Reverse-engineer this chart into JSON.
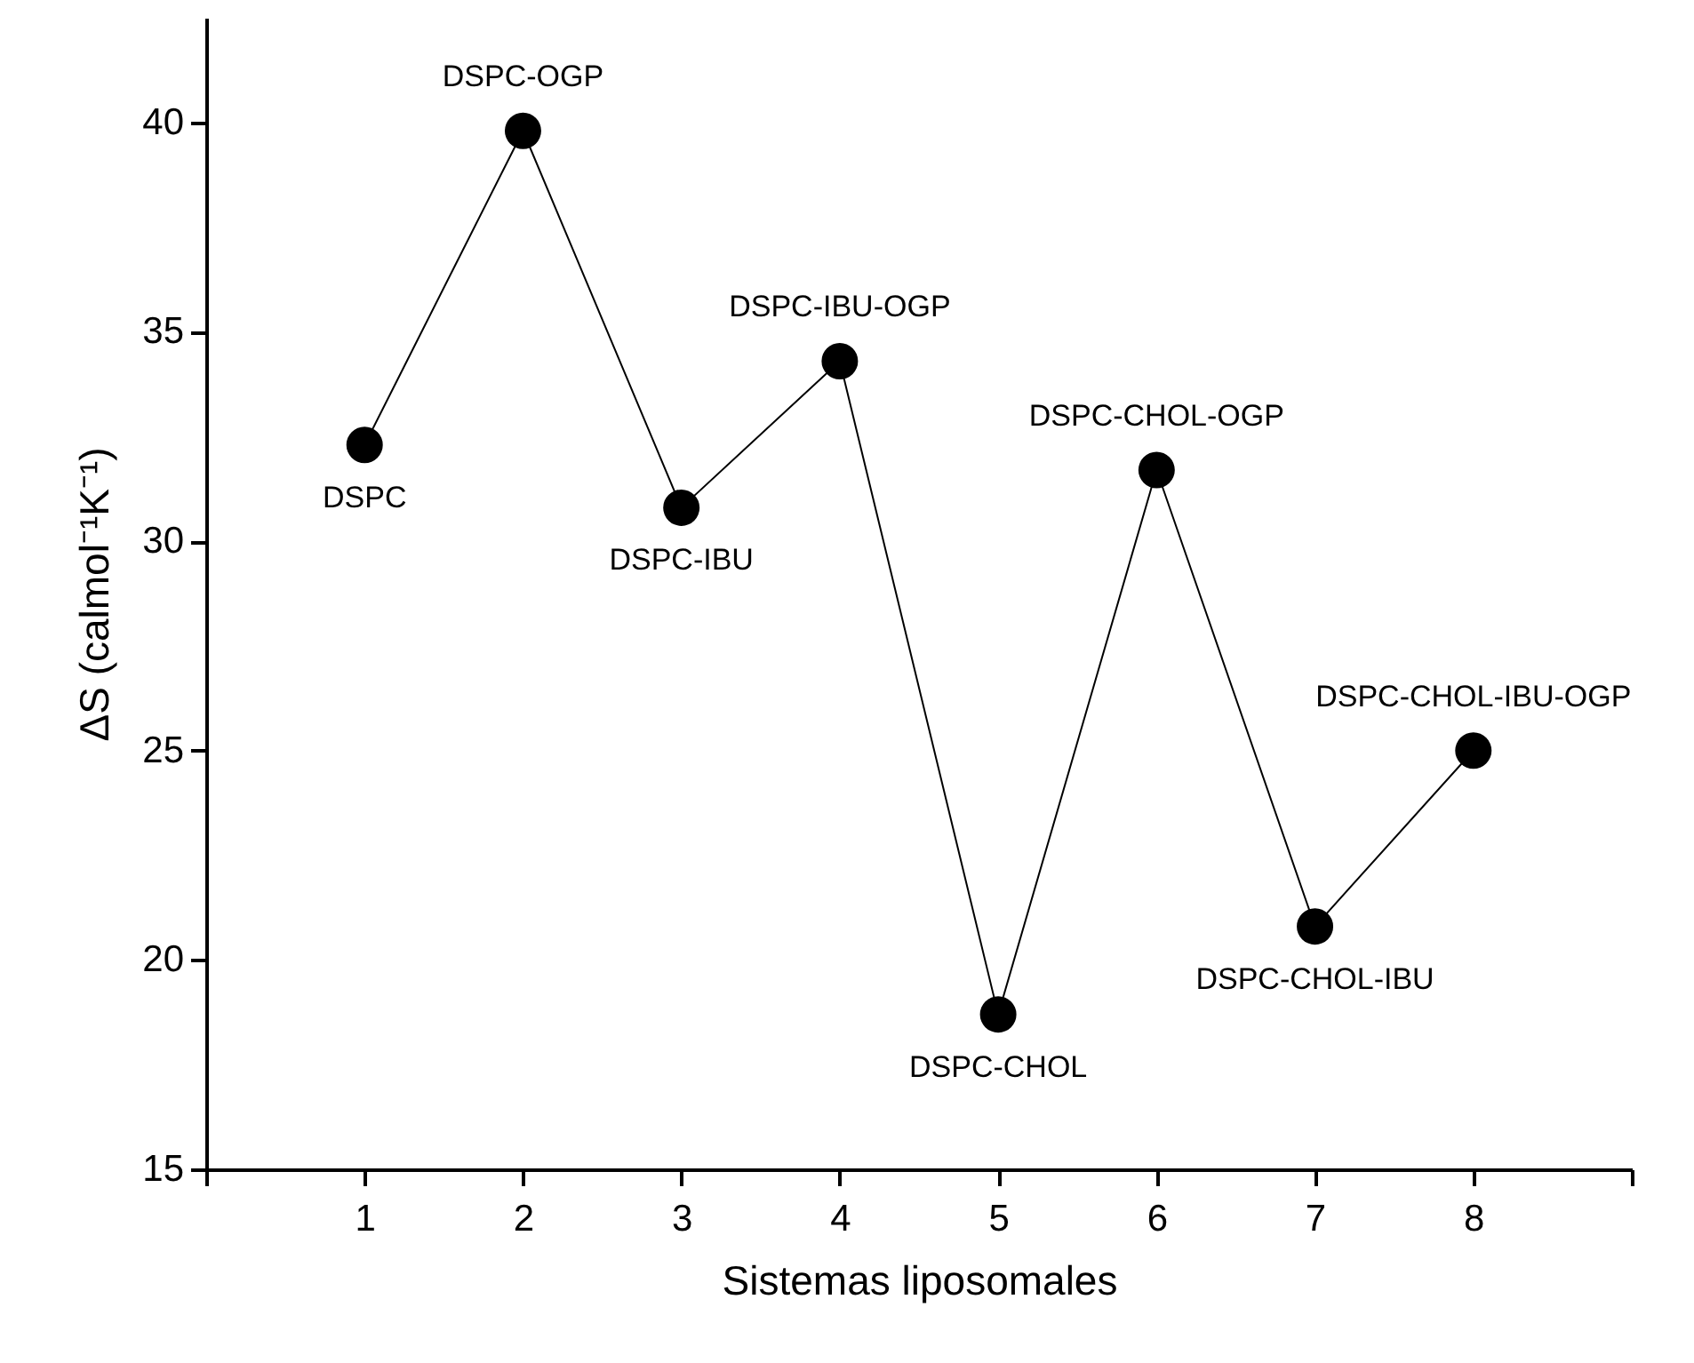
{
  "chart_data": {
    "type": "line",
    "xlabel": "Sistemas liposomales",
    "ylabel": "ΔS (calmol⁻¹K⁻¹)",
    "x": [
      1,
      2,
      3,
      4,
      5,
      6,
      7,
      8
    ],
    "series": [
      {
        "color": "#000000",
        "values": [
          32.3,
          39.8,
          30.8,
          34.3,
          18.7,
          31.7,
          20.8,
          25.0
        ]
      }
    ],
    "xlim": [
      0,
      9
    ],
    "xticks": [
      {
        "value": 0,
        "label": null
      },
      1,
      2,
      3,
      4,
      5,
      6,
      7,
      8,
      {
        "value": 9,
        "label": null
      }
    ],
    "ylim": [
      15,
      42.5
    ],
    "yticks": [
      15,
      20,
      25,
      30,
      35,
      40
    ],
    "marker": "circle",
    "line_style": "solid",
    "grid": false,
    "annotations": [
      {
        "text": "DSPC",
        "x": 1,
        "y": 32.3
      },
      {
        "text": "DSPC-OGP",
        "x": 2,
        "y": 39.8
      },
      {
        "text": "DSPC-IBU",
        "x": 3,
        "y": 30.8
      },
      {
        "text": "DSPC-IBU-OGP",
        "x": 4,
        "y": 34.3
      },
      {
        "text": "DSPC-CHOL",
        "x": 5,
        "y": 18.7
      },
      {
        "text": "DSPC-CHOL-OGP",
        "x": 6,
        "y": 31.7
      },
      {
        "text": "DSPC-CHOL-IBU",
        "x": 7,
        "y": 20.8
      },
      {
        "text": "DSPC-CHOL-IBU-OGP",
        "x": 8,
        "y": 25.0
      }
    ]
  }
}
